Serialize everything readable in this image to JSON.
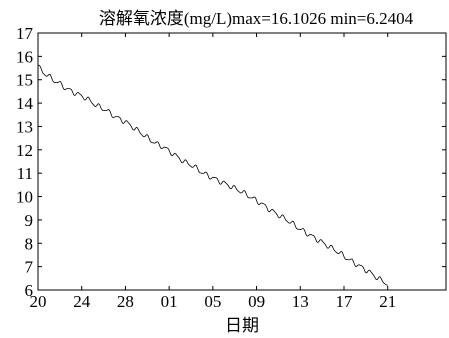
{
  "chart_data": {
    "type": "line",
    "title": "溶解氧浓度(mg/L)max=16.1026 min=6.2404",
    "xlabel": "日期",
    "ylabel": "",
    "x_tick_labels": [
      "20",
      "24",
      "28",
      "01",
      "05",
      "09",
      "13",
      "17",
      "21"
    ],
    "y_ticks": [
      6,
      7,
      8,
      9,
      10,
      11,
      12,
      13,
      14,
      15,
      16,
      17
    ],
    "ylim": [
      6,
      17
    ],
    "x_index_range": [
      0,
      36
    ],
    "grid": false,
    "legend": "none",
    "line_color": "#000000",
    "series": [
      {
        "x": [
          0,
          0.5,
          1,
          1.5,
          2,
          3,
          4,
          5,
          6,
          7,
          8,
          9,
          10,
          11,
          12,
          13,
          14,
          15,
          16,
          17,
          18,
          19,
          20,
          21,
          22,
          23,
          24,
          25,
          26,
          27,
          28,
          29,
          30,
          31,
          32,
          33,
          34,
          35,
          36
        ],
        "values": [
          15.6,
          15.3,
          15.2,
          15.0,
          14.9,
          14.6,
          14.4,
          14.2,
          13.9,
          13.7,
          13.4,
          13.2,
          12.9,
          12.6,
          12.3,
          12.1,
          11.8,
          11.5,
          11.3,
          11.0,
          10.8,
          10.6,
          10.4,
          10.2,
          9.95,
          9.7,
          9.4,
          9.15,
          8.9,
          8.6,
          8.35,
          8.1,
          7.85,
          7.6,
          7.3,
          7.05,
          6.8,
          6.5,
          6.25
        ]
      }
    ]
  }
}
